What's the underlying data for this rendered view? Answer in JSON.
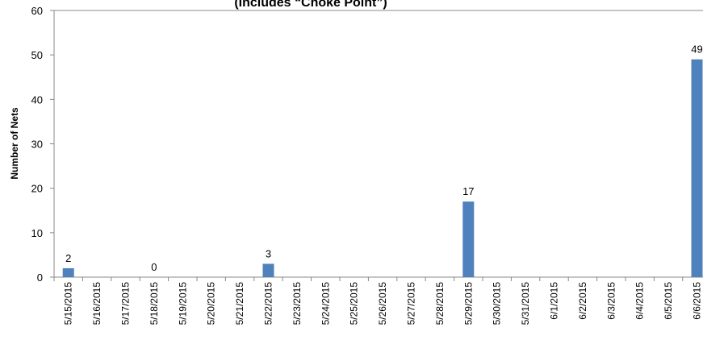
{
  "chart_data": {
    "type": "bar",
    "title": "(Includes “Choke Point”)",
    "y_label": "Number of Nets",
    "categories": [
      "5/15/2015",
      "5/16/2015",
      "5/17/2015",
      "5/18/2015",
      "5/19/2015",
      "5/20/2015",
      "5/21/2015",
      "5/22/2015",
      "5/23/2015",
      "5/24/2015",
      "5/25/2015",
      "5/26/2015",
      "5/27/2015",
      "5/28/2015",
      "5/29/2015",
      "5/30/2015",
      "5/31/2015",
      "6/1/2015",
      "6/2/2015",
      "6/3/2015",
      "6/4/2015",
      "6/5/2015",
      "6/6/2015"
    ],
    "values": [
      2,
      null,
      null,
      0,
      null,
      null,
      null,
      3,
      null,
      null,
      null,
      null,
      null,
      null,
      17,
      null,
      null,
      null,
      null,
      null,
      null,
      null,
      49
    ],
    "color": "#4f81bd",
    "ylim": [
      0,
      60
    ],
    "yticks": [
      0,
      10,
      20,
      30,
      40,
      50,
      60
    ],
    "grid": false
  }
}
